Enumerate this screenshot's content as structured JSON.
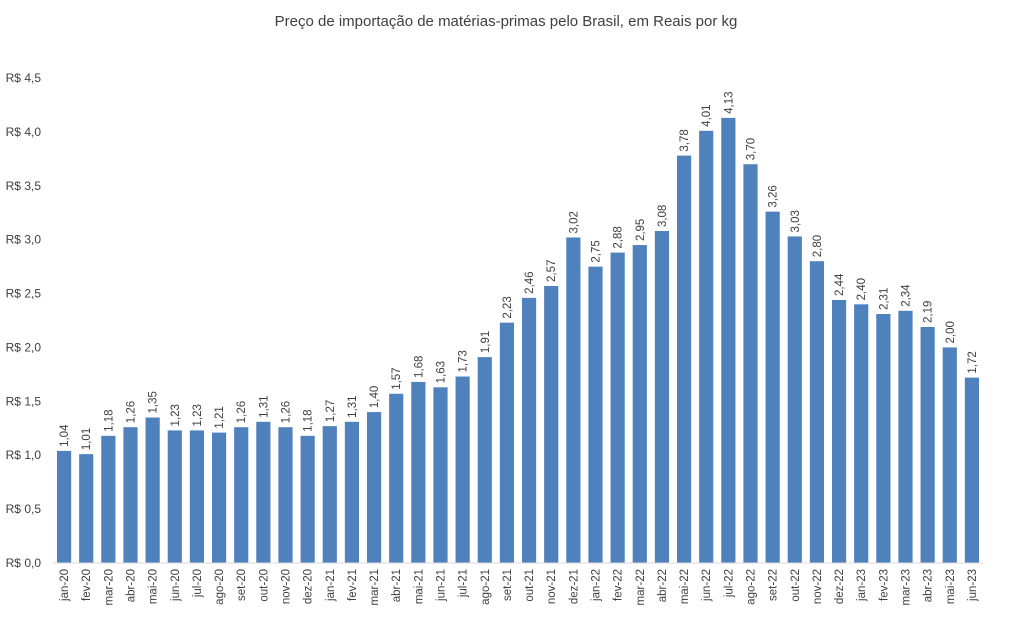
{
  "chart_data": {
    "type": "bar",
    "title": "Preço de importação de matérias-primas pelo Brasil, em Reais por kg",
    "xlabel": "",
    "ylabel": "",
    "ylim": [
      0,
      4.5
    ],
    "y_ticks": [
      "R$ 0,0",
      "R$ 0,5",
      "R$ 1,0",
      "R$ 1,5",
      "R$ 2,0",
      "R$ 2,5",
      "R$ 3,0",
      "R$ 3,5",
      "R$ 4,0",
      "R$ 4,5"
    ],
    "grid": false,
    "bar_color": "#4F81BD",
    "categories": [
      "jan-20",
      "fev-20",
      "mar-20",
      "abr-20",
      "mai-20",
      "jun-20",
      "jul-20",
      "ago-20",
      "set-20",
      "out-20",
      "nov-20",
      "dez-20",
      "jan-21",
      "fev-21",
      "mar-21",
      "abr-21",
      "mai-21",
      "jun-21",
      "jul-21",
      "ago-21",
      "set-21",
      "out-21",
      "nov-21",
      "dez-21",
      "jan-22",
      "fev-22",
      "mar-22",
      "abr-22",
      "mai-22",
      "jun-22",
      "jul-22",
      "ago-22",
      "set-22",
      "out-22",
      "nov-22",
      "dez-22",
      "jan-23",
      "fev-23",
      "mar-23",
      "abr-23",
      "mai-23",
      "jun-23"
    ],
    "values": [
      1.04,
      1.01,
      1.18,
      1.26,
      1.35,
      1.23,
      1.23,
      1.21,
      1.26,
      1.31,
      1.26,
      1.18,
      1.27,
      1.31,
      1.4,
      1.57,
      1.68,
      1.63,
      1.73,
      1.91,
      2.23,
      2.46,
      2.57,
      3.02,
      2.75,
      2.88,
      2.95,
      3.08,
      3.78,
      4.01,
      4.13,
      3.7,
      3.26,
      3.03,
      2.8,
      2.44,
      2.4,
      2.31,
      2.34,
      2.19,
      2.0,
      1.72
    ],
    "data_labels": [
      "1,04",
      "1,01",
      "1,18",
      "1,26",
      "1,35",
      "1,23",
      "1,23",
      "1,21",
      "1,26",
      "1,31",
      "1,26",
      "1,18",
      "1,27",
      "1,31",
      "1,40",
      "1,57",
      "1,68",
      "1,63",
      "1,73",
      "1,91",
      "2,23",
      "2,46",
      "2,57",
      "3,02",
      "2,75",
      "2,88",
      "2,95",
      "3,08",
      "3,78",
      "4,01",
      "4,13",
      "3,70",
      "3,26",
      "3,03",
      "2,80",
      "2,44",
      "2,40",
      "2,31",
      "2,34",
      "2,19",
      "2,00",
      "1,72"
    ]
  }
}
